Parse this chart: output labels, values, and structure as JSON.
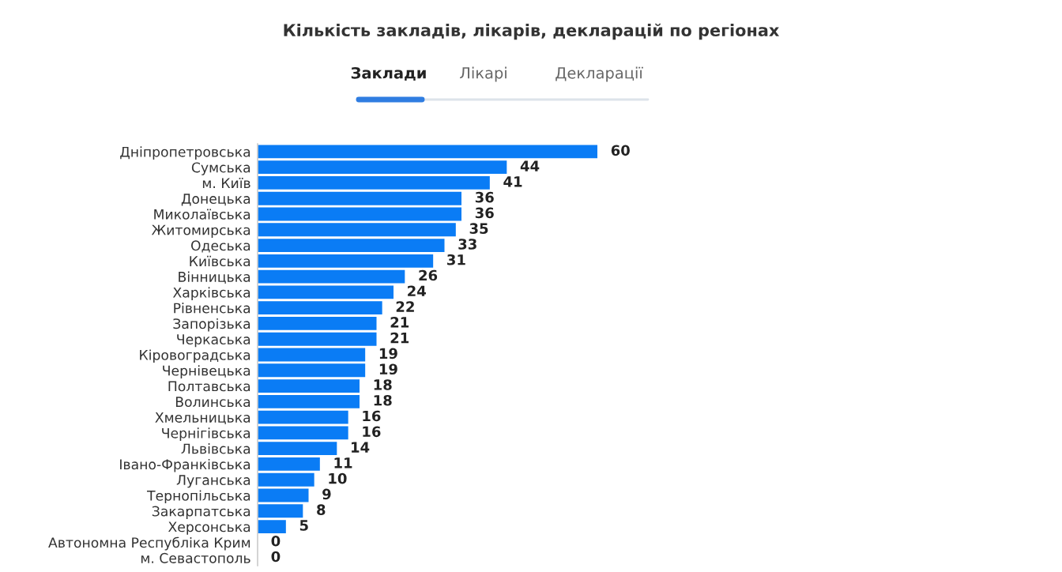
{
  "chart_data": {
    "type": "bar",
    "orientation": "horizontal",
    "title": "Кількість закладів, лікарів, декларацій по регіонах",
    "annotations": [
      "Заклади",
      "Лікарі",
      "Декларації"
    ],
    "categories": [
      "Дніпропетровська",
      "Сумська",
      "м. Київ",
      "Донецька",
      "Миколаївська",
      "Житомирська",
      "Одеська",
      "Київська",
      "Вінницька",
      "Харківська",
      "Рівненська",
      "Запорізька",
      "Черкаська",
      "Кіровоградська",
      "Чернівецька",
      "Полтавська",
      "Волинська",
      "Хмельницька",
      "Чернігівська",
      "Львівська",
      "Івано-Франківська",
      "Луганська",
      "Тернопільська",
      "Закарпатська",
      "Херсонська",
      "Автономна Республіка Крим",
      "м. Севастополь"
    ],
    "values": [
      60,
      44,
      41,
      36,
      36,
      35,
      33,
      31,
      26,
      24,
      22,
      21,
      21,
      19,
      19,
      18,
      18,
      16,
      16,
      14,
      11,
      10,
      9,
      8,
      5,
      0,
      0
    ],
    "color": "#0a7cf5",
    "data_labels": true,
    "grid": false,
    "legend": false
  }
}
